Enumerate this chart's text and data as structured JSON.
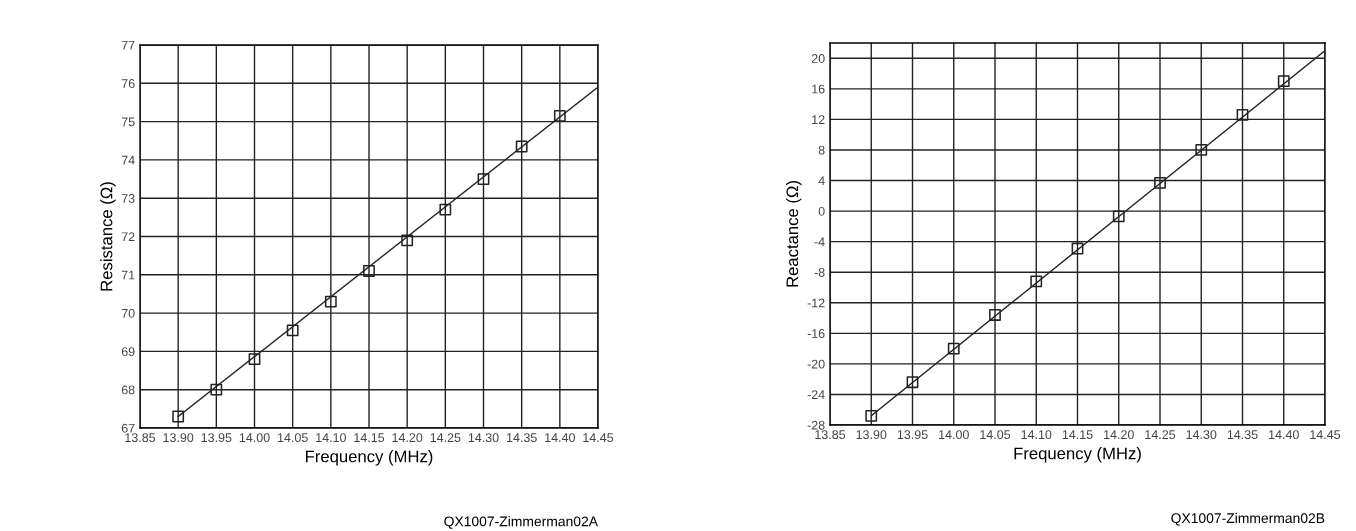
{
  "chart_data": [
    {
      "type": "line",
      "xlabel": "Frequency (MHz)",
      "ylabel": "Resistance (Ω)",
      "xlim": [
        13.85,
        14.45
      ],
      "xticks": [
        {
          "value": 13.85,
          "label": "13.85"
        },
        {
          "value": 13.9,
          "label": "13.90"
        },
        {
          "value": 13.95,
          "label": "13.95"
        },
        {
          "value": 14.0,
          "label": "14.00"
        },
        {
          "value": 14.05,
          "label": "14.05"
        },
        {
          "value": 14.1,
          "label": "14.10"
        },
        {
          "value": 14.15,
          "label": "14.15"
        },
        {
          "value": 14.2,
          "label": "14.20"
        },
        {
          "value": 14.25,
          "label": "14.25"
        },
        {
          "value": 14.3,
          "label": "14.30"
        },
        {
          "value": 14.35,
          "label": "14.35"
        },
        {
          "value": 14.4,
          "label": "14.40"
        },
        {
          "value": 14.45,
          "label": "14.45"
        }
      ],
      "ylim": [
        67,
        77
      ],
      "yticks": [
        67,
        68,
        69,
        70,
        71,
        72,
        73,
        74,
        75,
        76,
        77
      ],
      "grid": true,
      "annotations": [
        "QX1007-Zimmerman02A"
      ],
      "series": [
        {
          "color": "#222222",
          "marker": "none",
          "x": [
            13.9,
            14.45
          ],
          "values": [
            67.3,
            75.9
          ]
        },
        {
          "type": "scatter",
          "color": "#222222",
          "marker": "square",
          "x": [
            13.9,
            13.95,
            14.0,
            14.05,
            14.1,
            14.15,
            14.2,
            14.25,
            14.3,
            14.35,
            14.4
          ],
          "values": [
            67.3,
            68.0,
            68.8,
            69.55,
            70.3,
            71.1,
            71.9,
            72.7,
            73.5,
            74.35,
            75.15
          ]
        }
      ]
    },
    {
      "type": "line",
      "xlabel": "Frequency (MHz)",
      "ylabel": "Reactance (Ω)",
      "xlim": [
        13.85,
        14.45
      ],
      "xticks": [
        {
          "value": 13.85,
          "label": "13.85"
        },
        {
          "value": 13.9,
          "label": "13.90"
        },
        {
          "value": 13.95,
          "label": "13.95"
        },
        {
          "value": 14.0,
          "label": "14.00"
        },
        {
          "value": 14.05,
          "label": "14.05"
        },
        {
          "value": 14.1,
          "label": "14.10"
        },
        {
          "value": 14.15,
          "label": "14.15"
        },
        {
          "value": 14.2,
          "label": "14.20"
        },
        {
          "value": 14.25,
          "label": "14.25"
        },
        {
          "value": 14.3,
          "label": "14.30"
        },
        {
          "value": 14.35,
          "label": "14.35"
        },
        {
          "value": 14.4,
          "label": "14.40"
        },
        {
          "value": 14.45,
          "label": "14.45"
        }
      ],
      "ylim": [
        -28,
        22
      ],
      "yticks": [
        -28,
        -24,
        -20,
        -16,
        -12,
        -8,
        -4,
        0,
        4,
        8,
        12,
        16,
        20
      ],
      "grid": true,
      "annotations": [
        "QX1007-Zimmerman02B"
      ],
      "series": [
        {
          "color": "#222222",
          "marker": "none",
          "x": [
            13.9,
            14.45
          ],
          "values": [
            -26.8,
            21.0
          ]
        },
        {
          "type": "scatter",
          "color": "#222222",
          "marker": "square",
          "x": [
            13.9,
            13.95,
            14.0,
            14.05,
            14.1,
            14.15,
            14.2,
            14.25,
            14.3,
            14.35,
            14.4
          ],
          "values": [
            -26.8,
            -22.4,
            -18.0,
            -13.6,
            -9.2,
            -4.9,
            -0.7,
            3.7,
            8.0,
            12.6,
            17.0
          ]
        }
      ]
    }
  ]
}
